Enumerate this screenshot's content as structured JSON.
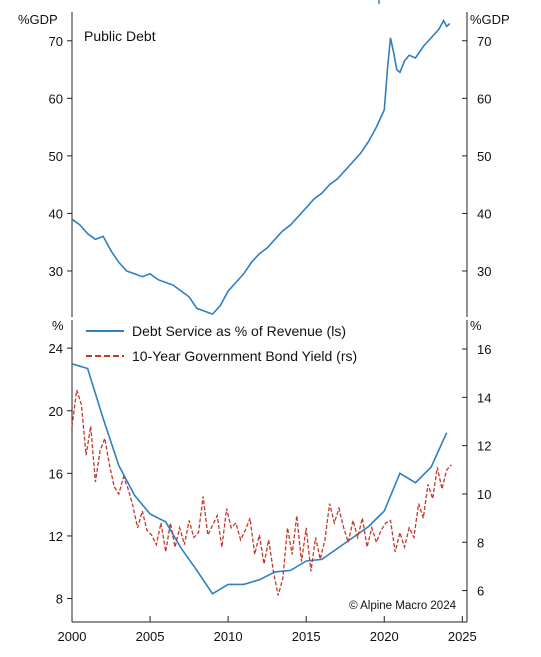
{
  "chart_data": [
    {
      "type": "line",
      "title": "Public Debt",
      "y_unit_left": "%GDP",
      "y_unit_right": "%GDP",
      "ylim": [
        22,
        75
      ],
      "yticks": [
        30,
        40,
        50,
        60,
        70
      ],
      "xlim": [
        2000,
        2025.3
      ],
      "series": [
        {
          "color": "#2f7fc1",
          "x": [
            2000.0,
            2000.5,
            2001.0,
            2001.5,
            2002.0,
            2002.5,
            2003.0,
            2003.5,
            2004.0,
            2004.5,
            2005.0,
            2005.5,
            2006.0,
            2006.5,
            2007.0,
            2007.5,
            2008.0,
            2008.5,
            2009.0,
            2009.5,
            2010.0,
            2010.5,
            2011.0,
            2011.5,
            2012.0,
            2012.5,
            2013.0,
            2013.5,
            2014.0,
            2014.5,
            2015.0,
            2015.5,
            2016.0,
            2016.5,
            2017.0,
            2017.5,
            2018.0,
            2018.5,
            2019.0,
            2019.5,
            2020.0,
            2020.2,
            2020.4,
            2020.6,
            2020.8,
            2021.0,
            2021.3,
            2021.6,
            2022.0,
            2022.5,
            2023.0,
            2023.5,
            2023.8,
            2024.0,
            2024.2
          ],
          "y": [
            39,
            38,
            36.5,
            35.5,
            36,
            33.5,
            31.5,
            30,
            29.5,
            29,
            29.5,
            28.5,
            28,
            27.5,
            26.5,
            25.5,
            23.5,
            23,
            22.5,
            24,
            26.5,
            28,
            29.5,
            31.5,
            33,
            34,
            35.5,
            37,
            38,
            39.5,
            41,
            42.5,
            43.5,
            45,
            46,
            47.5,
            49,
            50.5,
            52.5,
            55,
            58,
            65,
            70.5,
            68,
            65,
            64.5,
            66.5,
            67.5,
            67,
            69,
            70.5,
            72,
            73.5,
            72.5,
            73
          ]
        }
      ],
      "legend": [
        "Public Debt"
      ]
    },
    {
      "type": "line",
      "title": "",
      "y_unit_left": "%",
      "y_unit_right": "%",
      "ylim_left": [
        6.5,
        25.8
      ],
      "yticks_left": [
        8,
        12,
        16,
        20,
        24
      ],
      "ylim_right": [
        4.7,
        17.2
      ],
      "yticks_right": [
        6,
        8,
        10,
        12,
        14,
        16
      ],
      "xlim": [
        2000,
        2025.3
      ],
      "xticks": [
        2000,
        2005,
        2010,
        2015,
        2020,
        2025
      ],
      "legend_position": "top-left",
      "series": [
        {
          "name": "Debt Service as % of Revenue (ls)",
          "axis": "left",
          "color": "#2f7fc1",
          "style": "solid",
          "x": [
            2000,
            2001,
            2002,
            2003,
            2004,
            2005,
            2006,
            2007,
            2008,
            2009,
            2010,
            2011,
            2012,
            2013,
            2014,
            2015,
            2016,
            2017,
            2018,
            2019,
            2020,
            2021,
            2022,
            2023,
            2024
          ],
          "y": [
            23,
            22.7,
            19.5,
            16.5,
            14.6,
            13.4,
            12.9,
            11.2,
            9.8,
            8.3,
            8.9,
            8.9,
            9.2,
            9.7,
            9.8,
            10.4,
            10.5,
            11.2,
            11.9,
            12.6,
            13.6,
            16.0,
            15.4,
            16.4,
            18.6
          ]
        },
        {
          "name": "10-Year Government Bond Yield (rs)",
          "axis": "right",
          "color": "#c0392b",
          "style": "dashed",
          "x": [
            2000.0,
            2000.3,
            2000.6,
            2000.9,
            2001.2,
            2001.5,
            2001.8,
            2002.1,
            2002.4,
            2002.7,
            2003.0,
            2003.3,
            2003.6,
            2003.9,
            2004.2,
            2004.5,
            2004.8,
            2005.1,
            2005.4,
            2005.7,
            2006.0,
            2006.3,
            2006.6,
            2006.9,
            2007.2,
            2007.5,
            2007.8,
            2008.1,
            2008.4,
            2008.7,
            2009.0,
            2009.3,
            2009.6,
            2009.9,
            2010.2,
            2010.5,
            2010.8,
            2011.1,
            2011.4,
            2011.7,
            2012.0,
            2012.3,
            2012.6,
            2012.9,
            2013.2,
            2013.5,
            2013.8,
            2014.1,
            2014.4,
            2014.7,
            2015.0,
            2015.3,
            2015.6,
            2015.9,
            2016.2,
            2016.5,
            2016.8,
            2017.1,
            2017.4,
            2017.7,
            2018.0,
            2018.3,
            2018.6,
            2018.9,
            2019.2,
            2019.5,
            2019.8,
            2020.1,
            2020.4,
            2020.7,
            2021.0,
            2021.3,
            2021.6,
            2021.9,
            2022.2,
            2022.5,
            2022.8,
            2023.1,
            2023.4,
            2023.7,
            2024.0,
            2024.3
          ],
          "y": [
            12.8,
            14.3,
            13.7,
            11.6,
            12.8,
            10.5,
            11.8,
            12.3,
            11.2,
            10.3,
            10.0,
            10.7,
            10.2,
            9.5,
            8.6,
            9.3,
            8.5,
            8.3,
            7.9,
            8.8,
            7.6,
            8.8,
            7.8,
            8.6,
            7.9,
            8.9,
            8.2,
            8.4,
            9.9,
            8.3,
            8.7,
            9.1,
            7.8,
            9.4,
            8.6,
            8.8,
            8.1,
            8.5,
            9.0,
            7.5,
            8.3,
            7.1,
            8.1,
            6.8,
            5.8,
            6.5,
            8.6,
            7.5,
            9.1,
            7.2,
            8.6,
            6.8,
            8.2,
            7.3,
            8.1,
            9.6,
            8.8,
            9.4,
            8.6,
            8.0,
            8.9,
            8.2,
            9.0,
            7.8,
            8.6,
            8.0,
            8.5,
            8.8,
            8.9,
            7.6,
            8.4,
            7.8,
            8.6,
            8.2,
            9.6,
            9.0,
            10.4,
            9.8,
            11.1,
            10.2,
            11.0,
            11.2
          ]
        }
      ]
    }
  ],
  "source_note": "© Alpine Macro 2024"
}
